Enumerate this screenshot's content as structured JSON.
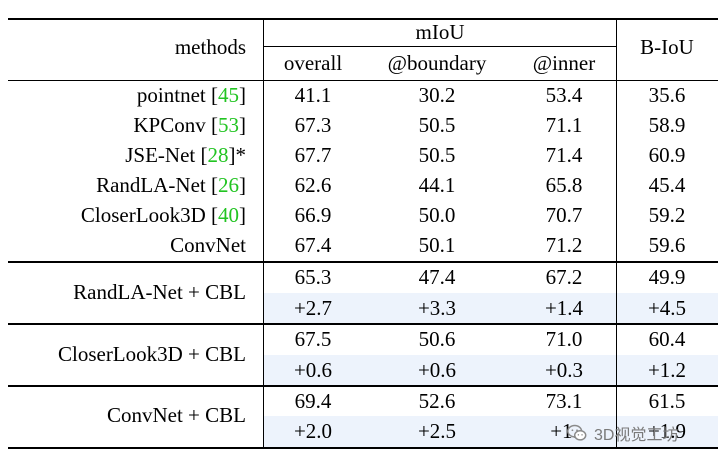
{
  "table": {
    "header": {
      "methods": "methods",
      "miou_group": "mIoU",
      "overall": "overall",
      "boundary": "@boundary",
      "inner": "@inner",
      "biou": "B-IoU"
    },
    "baselines": [
      {
        "name": "pointnet ",
        "cite": "45",
        "suffix": "",
        "overall": "41.1",
        "boundary": "30.2",
        "inner": "53.4",
        "biou": "35.6"
      },
      {
        "name": "KPConv ",
        "cite": "53",
        "suffix": "",
        "overall": "67.3",
        "boundary": "50.5",
        "inner": "71.1",
        "biou": "58.9"
      },
      {
        "name": "JSE-Net ",
        "cite": "28",
        "suffix": "*",
        "overall": "67.7",
        "boundary": "50.5",
        "inner": "71.4",
        "biou": "60.9"
      },
      {
        "name": "RandLA-Net ",
        "cite": "26",
        "suffix": "",
        "overall": "62.6",
        "boundary": "44.1",
        "inner": "65.8",
        "biou": "45.4"
      },
      {
        "name": "CloserLook3D ",
        "cite": "40",
        "suffix": "",
        "overall": "66.9",
        "boundary": "50.0",
        "inner": "70.7",
        "biou": "59.2"
      },
      {
        "name": "ConvNet",
        "cite": "",
        "suffix": "",
        "overall": "67.4",
        "boundary": "50.1",
        "inner": "71.2",
        "biou": "59.6"
      }
    ],
    "cbl_groups": [
      {
        "name": "RandLA-Net + CBL",
        "values": {
          "overall": "65.3",
          "boundary": "47.4",
          "inner": "67.2",
          "biou": "49.9"
        },
        "deltas": {
          "overall": "+2.7",
          "boundary": "+3.3",
          "inner": "+1.4",
          "biou": "+4.5"
        }
      },
      {
        "name": "CloserLook3D + CBL",
        "values": {
          "overall": "67.5",
          "boundary": "50.6",
          "inner": "71.0",
          "biou": "60.4"
        },
        "deltas": {
          "overall": "+0.6",
          "boundary": "+0.6",
          "inner": "+0.3",
          "biou": "+1.2"
        }
      },
      {
        "name": "ConvNet + CBL",
        "values": {
          "overall": "69.4",
          "boundary": "52.6",
          "inner": "73.1",
          "biou": "61.5"
        },
        "deltas": {
          "overall": "+2.0",
          "boundary": "+2.5",
          "inner": "+1.",
          "biou": "+1.9"
        }
      }
    ]
  },
  "watermark": {
    "text": "3D视觉工坊",
    "icon": "wechat-icon"
  },
  "colors": {
    "citation": "#22c422",
    "highlight": "#edf3fc"
  }
}
